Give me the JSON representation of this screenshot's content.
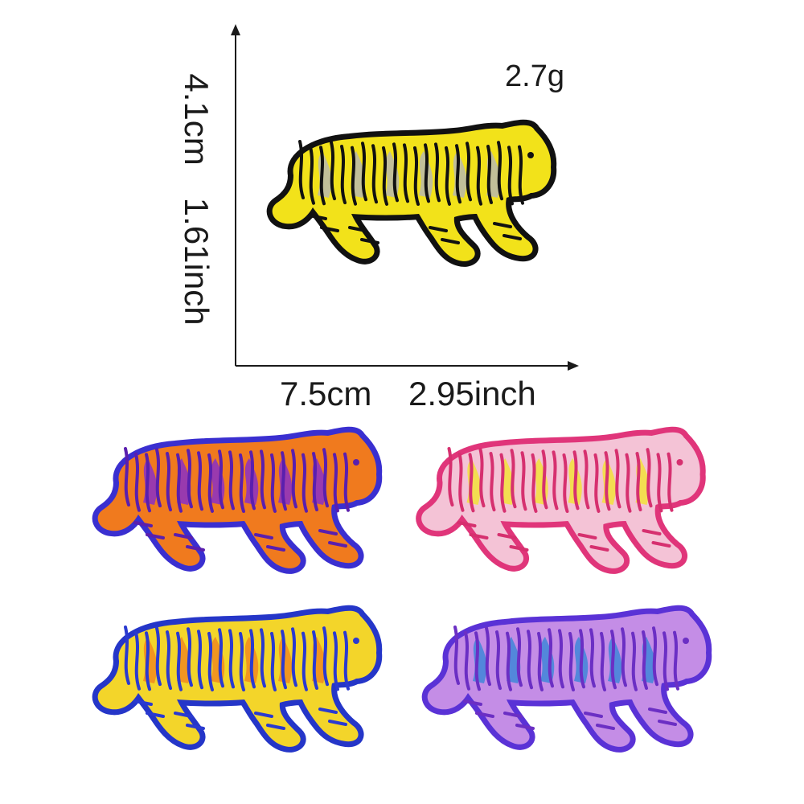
{
  "dimensions": {
    "height_cm": "4.1cm",
    "height_inch": "1.61inch",
    "width_cm": "7.5cm",
    "width_inch": "2.95inch",
    "weight": "2.7g"
  },
  "patches": [
    {
      "name": "yellow-black tiger patch",
      "border": "#111111",
      "body": "#f2e21a",
      "accent": "#b9b9b0",
      "stripe": "#111111"
    },
    {
      "name": "orange-purple tiger patch",
      "border": "#3a2fd0",
      "body": "#f07a1e",
      "accent": "#8a2fc8",
      "stripe": "#5a1fae"
    },
    {
      "name": "pink-yellow tiger patch",
      "border": "#e0357a",
      "body": "#f4c3d6",
      "accent": "#f2e23a",
      "stripe": "#d6306f"
    },
    {
      "name": "blue-yellow tiger patch",
      "border": "#2536c8",
      "body": "#f3d52a",
      "accent": "#f08a1e",
      "stripe": "#2a3ad0"
    },
    {
      "name": "purple tiger patch",
      "border": "#5a32d6",
      "body": "#c48de6",
      "accent": "#3f86d8",
      "stripe": "#6b2fc4"
    }
  ]
}
